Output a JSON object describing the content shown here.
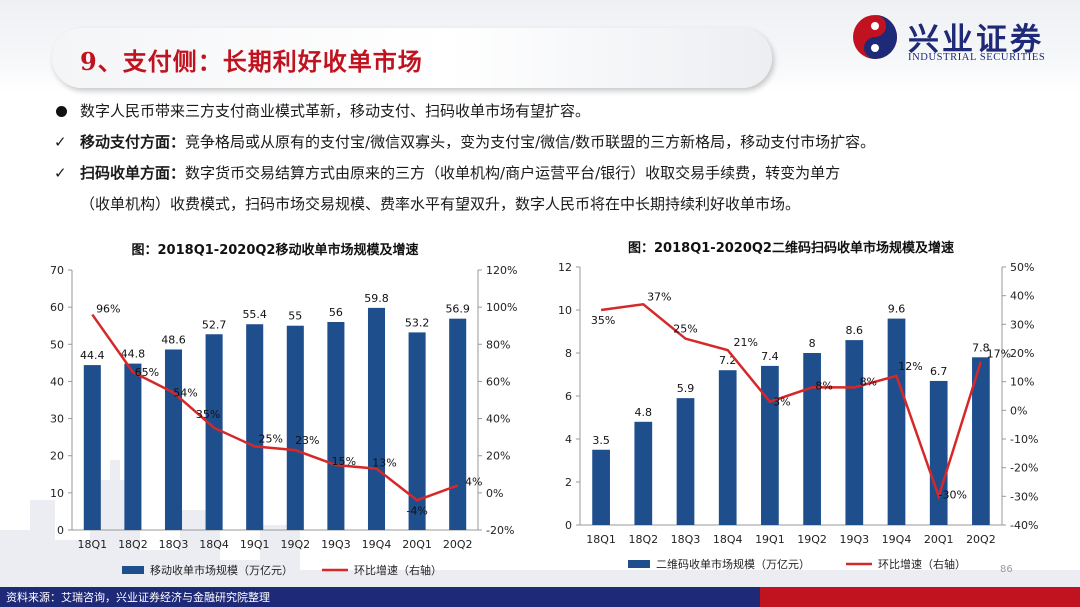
{
  "header": {
    "title": "9、支付侧：长期利好收单市场",
    "logo_cn": "兴业证券",
    "logo_en": "INDUSTRIAL SECURITIES"
  },
  "bullets": [
    {
      "marker": "dot",
      "bold": "",
      "text": "数字人民币带来三方支付商业模式革新，移动支付、扫码收单市场有望扩容。"
    },
    {
      "marker": "check",
      "bold": "移动支付方面：",
      "text": "竞争格局或从原有的支付宝/微信双寡头，变为支付宝/微信/数币联盟的三方新格局，移动支付市场扩容。"
    },
    {
      "marker": "check",
      "bold": "扫码收单方面：",
      "text": "数字货币交易结算方式由原来的三方（收单机构/商户运营平台/银行）收取交易手续费，转变为单方"
    },
    {
      "marker": "none",
      "bold": "",
      "text": "（收单机构）收费模式，扫码市场交易规模、费率水平有望双升，数字人民币将在中长期持续利好收单市场。"
    }
  ],
  "footer": {
    "source": "资料来源：艾瑞咨询，兴业证券经济与金融研究院整理",
    "page": "86"
  },
  "colors": {
    "bar": "#1f4e8c",
    "line": "#d62828",
    "title_red": "#c1121f",
    "navy": "#1e2a78"
  },
  "chart_data": [
    {
      "type": "bar",
      "title": "图：2018Q1-2020Q2移动收单市场规模及增速",
      "categories": [
        "18Q1",
        "18Q2",
        "18Q3",
        "18Q4",
        "19Q1",
        "19Q2",
        "19Q3",
        "19Q4",
        "20Q1",
        "20Q2"
      ],
      "series": [
        {
          "name": "移动收单市场规模（万亿元）",
          "type": "bar",
          "axis": "left",
          "values": [
            44.4,
            44.8,
            48.6,
            52.7,
            55.4,
            55,
            56,
            59.8,
            53.2,
            56.9
          ],
          "labels": [
            "44.4",
            "44.8",
            "48.6",
            "52.7",
            "55.4",
            "55",
            "56",
            "59.8",
            "53.2",
            "56.9"
          ]
        },
        {
          "name": "环比增速（右轴）",
          "type": "line",
          "axis": "right",
          "values": [
            96,
            65,
            54,
            35,
            25,
            23,
            15,
            13,
            -4,
            4
          ],
          "labels": [
            "96%",
            "65%",
            "54%",
            "35%",
            "25%",
            "23%",
            "15%",
            "13%",
            "-4%",
            "4%"
          ]
        }
      ],
      "y_left": {
        "min": 0,
        "max": 70,
        "ticks": [
          "0",
          "10",
          "20",
          "30",
          "40",
          "50",
          "60",
          "70"
        ]
      },
      "y_right": {
        "min": -20,
        "max": 120,
        "ticks": [
          "-20%",
          "0%",
          "20%",
          "40%",
          "60%",
          "80%",
          "100%",
          "120%"
        ]
      },
      "legend_position": "bottom"
    },
    {
      "type": "bar",
      "title": "图：2018Q1-2020Q2二维码扫码收单市场规模及增速",
      "categories": [
        "18Q1",
        "18Q2",
        "18Q3",
        "18Q4",
        "19Q1",
        "19Q2",
        "19Q3",
        "19Q4",
        "20Q1",
        "20Q2"
      ],
      "series": [
        {
          "name": "二维码收单市场规模（万亿元）",
          "type": "bar",
          "axis": "left",
          "values": [
            3.5,
            4.8,
            5.9,
            7.2,
            7.4,
            8,
            8.6,
            9.6,
            6.7,
            7.8
          ],
          "labels": [
            "3.5",
            "4.8",
            "5.9",
            "7.2",
            "7.4",
            "8",
            "8.6",
            "9.6",
            "6.7",
            "7.8"
          ]
        },
        {
          "name": "环比增速（右轴）",
          "type": "line",
          "axis": "right",
          "values": [
            35,
            37,
            25,
            21,
            3,
            8,
            8,
            12,
            -30,
            17
          ],
          "labels": [
            "35%",
            "37%",
            "25%",
            "21%",
            "3%",
            "8%",
            "8%",
            "12%",
            "-30%",
            "17%"
          ]
        }
      ],
      "y_left": {
        "min": 0,
        "max": 12,
        "ticks": [
          "0",
          "2",
          "4",
          "6",
          "8",
          "10",
          "12"
        ]
      },
      "y_right": {
        "min": -40,
        "max": 50,
        "ticks": [
          "-40%",
          "-30%",
          "-20%",
          "-10%",
          "0%",
          "10%",
          "20%",
          "30%",
          "40%",
          "50%"
        ]
      },
      "legend_position": "bottom"
    }
  ]
}
